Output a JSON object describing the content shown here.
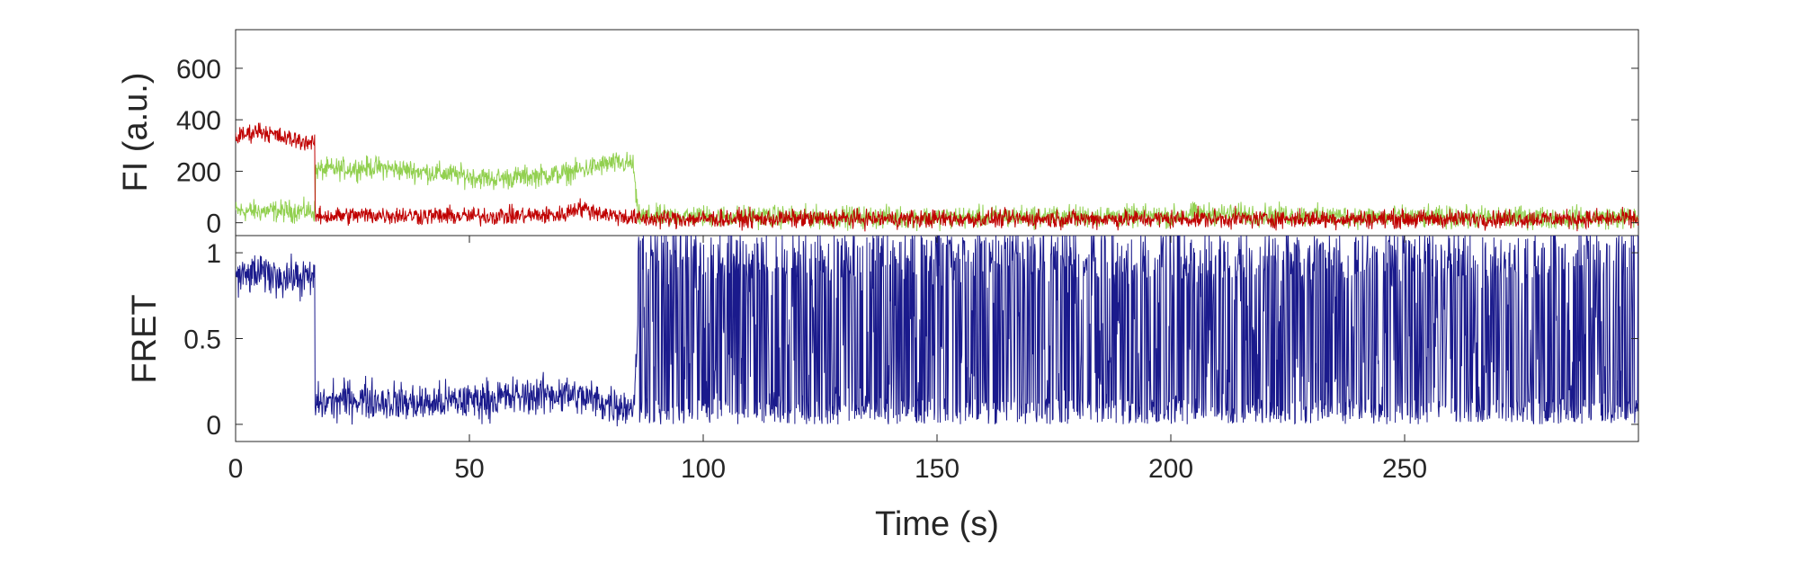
{
  "chart_data": [
    {
      "type": "line",
      "ylabel": "FI (a.u.)",
      "xlim": [
        0,
        300
      ],
      "ylim": [
        -50,
        750
      ],
      "yticks": [
        0,
        200,
        400,
        600
      ],
      "yticklabels": [
        "0",
        "200",
        "400",
        "600"
      ],
      "grid": false,
      "series": [
        {
          "color": "#92d050",
          "x": [
            0,
            17,
            17.1,
            30,
            45,
            55,
            70,
            80,
            85,
            86,
            100,
            150,
            175,
            200,
            205,
            250,
            300
          ],
          "values": [
            45,
            45,
            205,
            215,
            190,
            170,
            190,
            230,
            230,
            25,
            25,
            20,
            25,
            25,
            35,
            20,
            20
          ]
        },
        {
          "color": "#c00000",
          "x": [
            0,
            5,
            10,
            16.9,
            17,
            30,
            50,
            70,
            73,
            80,
            85,
            86,
            100,
            150,
            200,
            250,
            300
          ],
          "values": [
            330,
            360,
            330,
            310,
            25,
            30,
            25,
            30,
            60,
            30,
            20,
            15,
            15,
            15,
            15,
            15,
            15
          ]
        }
      ]
    },
    {
      "type": "line",
      "ylabel": "FRET",
      "xlabel": "Time (s)",
      "xlim": [
        0,
        300
      ],
      "ylim": [
        -0.1,
        1.1
      ],
      "yticks": [
        0,
        0.5,
        1
      ],
      "yticklabels": [
        "0",
        "0.5",
        "1"
      ],
      "xticks": [
        0,
        50,
        100,
        150,
        200,
        250
      ],
      "xticklabels": [
        "0",
        "50",
        "100",
        "150",
        "200",
        "250"
      ],
      "grid": false,
      "series": [
        {
          "color": "#1a1a8c",
          "x": [
            0,
            5,
            10,
            16.9,
            17,
            25,
            40,
            55,
            70,
            80,
            85,
            86,
            100,
            150,
            200,
            250,
            300
          ],
          "values": [
            0.85,
            0.88,
            0.86,
            0.85,
            0.12,
            0.15,
            0.12,
            0.15,
            0.18,
            0.12,
            0.1,
            0.5,
            0.5,
            0.5,
            0.5,
            0.5,
            0.5
          ]
        }
      ]
    }
  ]
}
